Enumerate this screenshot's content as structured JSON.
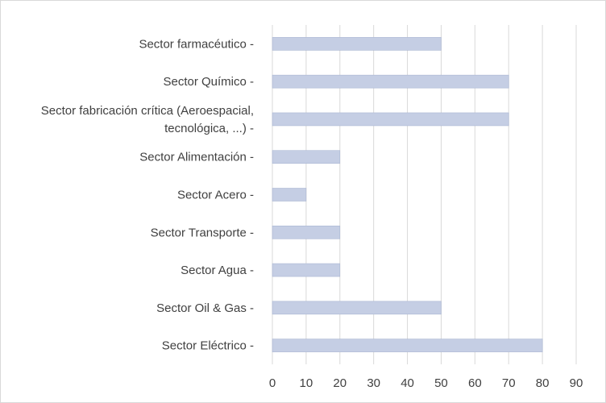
{
  "chart_data": {
    "type": "bar",
    "orientation": "horizontal",
    "title": "",
    "xlabel": "",
    "ylabel": "",
    "categories": [
      [
        "Sector farmacéutico -"
      ],
      [
        "Sector Químico -"
      ],
      [
        "Sector fabricación crítica (Aeroespacial,",
        "tecnológica, ...) -"
      ],
      [
        "Sector Alimentación -"
      ],
      [
        "Sector Acero -"
      ],
      [
        "Sector Transporte -"
      ],
      [
        "Sector Agua -"
      ],
      [
        "Sector Oil & Gas -"
      ],
      [
        "Sector Eléctrico -"
      ]
    ],
    "values": [
      50,
      70,
      70,
      20,
      10,
      20,
      20,
      50,
      80
    ],
    "xlim": [
      0,
      90
    ],
    "xticks": [
      0,
      10,
      20,
      30,
      40,
      50,
      60,
      70,
      80,
      90
    ],
    "grid": "vertical",
    "legend": "none",
    "colors": {
      "bar": "#c5cee4",
      "bar_edge": "#aab6d3",
      "grid": "#d9d9d9",
      "text": "#404040",
      "border": "#d9d9d9"
    }
  }
}
